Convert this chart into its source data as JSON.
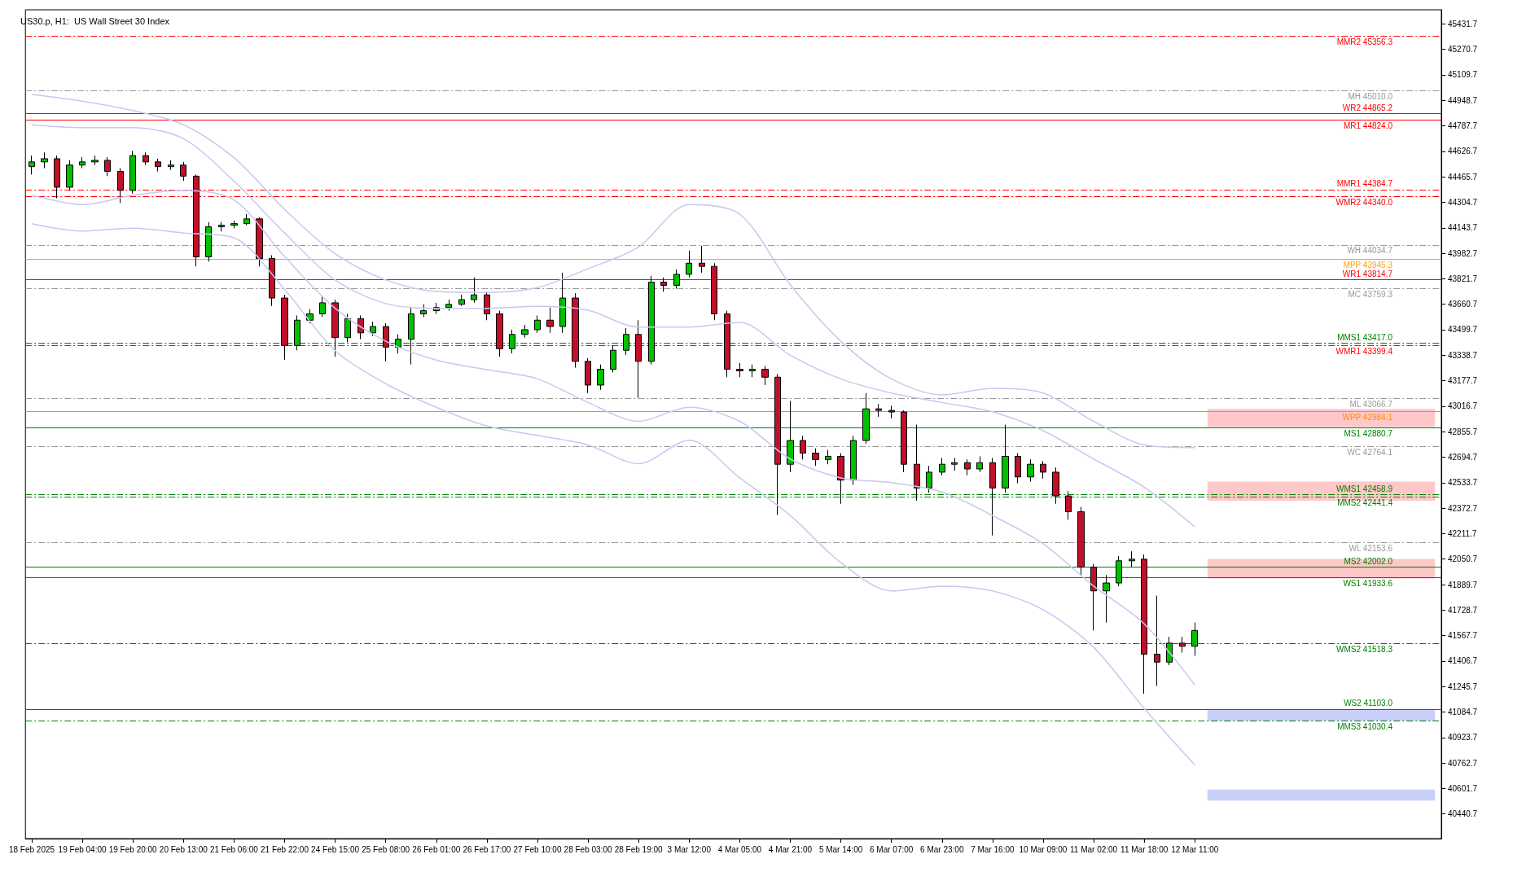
{
  "chart_data": {
    "type": "candlestick",
    "title": "US30.p, H1:  US Wall Street 30 Index",
    "categories": [
      "18 Feb 2025",
      null,
      null,
      null,
      "19 Feb 04:00",
      null,
      null,
      null,
      "19 Feb 20:00",
      null,
      null,
      null,
      "20 Feb 13:00",
      null,
      null,
      null,
      "21 Feb 06:00",
      null,
      null,
      null,
      "21 Feb 22:00",
      null,
      null,
      null,
      "24 Feb 15:00",
      null,
      null,
      null,
      "25 Feb 08:00",
      null,
      null,
      null,
      "26 Feb 01:00",
      null,
      null,
      null,
      "26 Feb 17:00",
      null,
      null,
      null,
      "27 Feb 10:00",
      null,
      null,
      null,
      "28 Feb 03:00",
      null,
      null,
      null,
      "28 Feb 19:00",
      null,
      null,
      null,
      "3 Mar 12:00",
      null,
      null,
      null,
      "4 Mar 05:00",
      null,
      null,
      null,
      "4 Mar 21:00",
      null,
      null,
      null,
      "5 Mar 14:00",
      null,
      null,
      null,
      "6 Mar 07:00",
      null,
      null,
      null,
      "6 Mar 23:00",
      null,
      null,
      null,
      "7 Mar 16:00",
      null,
      null,
      null,
      "10 Mar 09:00",
      null,
      null,
      null,
      "11 Mar 02:00",
      null,
      null,
      null,
      "11 Mar 18:00",
      null,
      null,
      null,
      "12 Mar 11:00",
      null,
      null,
      null,
      null,
      null,
      null,
      null,
      null,
      null,
      null,
      null,
      null,
      null,
      null,
      null,
      null,
      null,
      null,
      null
    ],
    "colors": [
      "#00c000",
      "#00c000",
      "#c0102a",
      "#00c000",
      "#00c000",
      "#00c000",
      "#c0102a",
      "#c0102a",
      "#00c000",
      "#c0102a",
      "#c0102a",
      "#00c000",
      "#c0102a",
      "#c0102a",
      "#00c000",
      "#00c000",
      "#00c000",
      "#00c000",
      "#c0102a",
      "#c0102a",
      "#c0102a",
      "#00c000",
      "#00c000",
      "#00c000",
      "#c0102a",
      "#00c000",
      "#c0102a",
      "#00c000",
      "#c0102a",
      "#00c000",
      "#00c000",
      "#00c000",
      "#00c000",
      "#00c000",
      "#00c000",
      "#00c000",
      "#c0102a",
      "#c0102a",
      "#00c000",
      "#00c000",
      "#00c000",
      "#c0102a",
      "#00c000",
      "#c0102a",
      "#c0102a",
      "#00c000",
      "#00c000",
      "#00c000",
      "#c0102a",
      "#00c000",
      "#c0102a",
      "#00c000",
      "#00c000",
      "#c0102a",
      "#c0102a",
      "#c0102a",
      "#c0102a",
      "#00c000",
      "#c0102a",
      "#c0102a",
      "#00c000",
      "#c0102a",
      "#c0102a",
      "#00c000",
      "#c0102a",
      "#00c000",
      "#00c000",
      "#c0102a",
      "#c0102a",
      "#c0102a",
      "#c0102a",
      "#00c000",
      "#00c000",
      "#00c000",
      "#c0102a",
      "#00c000",
      "#c0102a",
      "#00c000",
      "#c0102a",
      "#00c000",
      "#c0102a",
      "#c0102a",
      "#c0102a",
      "#c0102a",
      "#c0102a",
      "#00c000",
      "#00c000",
      "#00c000",
      "#c0102a",
      "#c0102a",
      "#00c000",
      "#c0102a",
      "#00c000",
      null,
      null,
      null,
      null,
      null,
      null,
      null,
      null,
      null,
      null,
      null,
      null,
      null,
      null,
      null,
      null,
      null,
      null,
      null
    ],
    "ohlc": [
      [
        44530,
        44600,
        44480,
        44560
      ],
      [
        44560,
        44620,
        44520,
        44580
      ],
      [
        44580,
        44600,
        44330,
        44400
      ],
      [
        44400,
        44570,
        44380,
        44540
      ],
      [
        44540,
        44590,
        44520,
        44560
      ],
      [
        44560,
        44600,
        44540,
        44570
      ],
      [
        44570,
        44590,
        44470,
        44500
      ],
      [
        44500,
        44520,
        44300,
        44380
      ],
      [
        44380,
        44630,
        44360,
        44600
      ],
      [
        44600,
        44620,
        44540,
        44560
      ],
      [
        44560,
        44580,
        44500,
        44530
      ],
      [
        44530,
        44570,
        44510,
        44540
      ],
      [
        44540,
        44560,
        44440,
        44470
      ],
      [
        44470,
        44480,
        43900,
        43960
      ],
      [
        43960,
        44180,
        43930,
        44150
      ],
      [
        44150,
        44180,
        44120,
        44160
      ],
      [
        44160,
        44190,
        44140,
        44170
      ],
      [
        44170,
        44230,
        44160,
        44200
      ],
      [
        44200,
        44210,
        43900,
        43950
      ],
      [
        43950,
        43970,
        43650,
        43700
      ],
      [
        43700,
        43720,
        43310,
        43400
      ],
      [
        43400,
        43590,
        43370,
        43560
      ],
      [
        43560,
        43630,
        43540,
        43600
      ],
      [
        43600,
        43710,
        43580,
        43670
      ],
      [
        43670,
        43690,
        43330,
        43450
      ],
      [
        43450,
        43600,
        43420,
        43570
      ],
      [
        43570,
        43590,
        43440,
        43480
      ],
      [
        43480,
        43550,
        43460,
        43520
      ],
      [
        43520,
        43540,
        43300,
        43390
      ],
      [
        43390,
        43470,
        43350,
        43440
      ],
      [
        43440,
        43640,
        43280,
        43600
      ],
      [
        43600,
        43660,
        43580,
        43620
      ],
      [
        43620,
        43670,
        43600,
        43640
      ],
      [
        43640,
        43690,
        43620,
        43660
      ],
      [
        43660,
        43720,
        43650,
        43690
      ],
      [
        43690,
        43830,
        43670,
        43720
      ],
      [
        43720,
        43740,
        43560,
        43600
      ],
      [
        43600,
        43620,
        43330,
        43380
      ],
      [
        43380,
        43500,
        43350,
        43470
      ],
      [
        43470,
        43530,
        43450,
        43500
      ],
      [
        43500,
        43590,
        43480,
        43560
      ],
      [
        43560,
        43640,
        43480,
        43520
      ],
      [
        43520,
        43860,
        43480,
        43700
      ],
      [
        43700,
        43730,
        43260,
        43300
      ],
      [
        43300,
        43320,
        43100,
        43150
      ],
      [
        43150,
        43280,
        43120,
        43250
      ],
      [
        43250,
        43400,
        43230,
        43370
      ],
      [
        43370,
        43510,
        43340,
        43470
      ],
      [
        43470,
        43560,
        43070,
        43300
      ],
      [
        43300,
        43840,
        43280,
        43800
      ],
      [
        43800,
        43830,
        43740,
        43780
      ],
      [
        43780,
        43880,
        43760,
        43850
      ],
      [
        43850,
        44000,
        43830,
        43920
      ],
      [
        43920,
        44030,
        43860,
        43900
      ],
      [
        43900,
        43920,
        43560,
        43600
      ],
      [
        43600,
        43620,
        43200,
        43250
      ],
      [
        43250,
        43290,
        43200,
        43240
      ],
      [
        43240,
        43280,
        43200,
        43250
      ],
      [
        43250,
        43270,
        43150,
        43200
      ],
      [
        43200,
        43220,
        42330,
        42650
      ],
      [
        42650,
        43050,
        42600,
        42800
      ],
      [
        42800,
        42830,
        42680,
        42720
      ],
      [
        42720,
        42750,
        42640,
        42680
      ],
      [
        42680,
        42740,
        42650,
        42700
      ],
      [
        42700,
        42720,
        42400,
        42550
      ],
      [
        42550,
        42830,
        42520,
        42800
      ],
      [
        42800,
        43100,
        42780,
        43000
      ],
      [
        43000,
        43030,
        42950,
        42990
      ],
      [
        42990,
        43020,
        42940,
        42980
      ],
      [
        42980,
        42990,
        42600,
        42650
      ],
      [
        42650,
        42900,
        42420,
        42500
      ],
      [
        42500,
        42640,
        42470,
        42600
      ],
      [
        42600,
        42690,
        42580,
        42650
      ],
      [
        42650,
        42690,
        42610,
        42660
      ],
      [
        42660,
        42680,
        42580,
        42620
      ],
      [
        42620,
        42700,
        42600,
        42660
      ],
      [
        42660,
        42690,
        42200,
        42500
      ],
      [
        42500,
        42900,
        42470,
        42700
      ],
      [
        42700,
        42720,
        42530,
        42570
      ],
      [
        42570,
        42680,
        42540,
        42650
      ],
      [
        42650,
        42670,
        42560,
        42600
      ],
      [
        42600,
        42630,
        42400,
        42450
      ],
      [
        42450,
        42480,
        42300,
        42350
      ],
      [
        42350,
        42380,
        41950,
        42000
      ],
      [
        42000,
        42020,
        41600,
        41850
      ],
      [
        41850,
        41950,
        41650,
        41900
      ],
      [
        41900,
        42070,
        41880,
        42040
      ],
      [
        42040,
        42100,
        42000,
        42050
      ],
      [
        42050,
        42080,
        41200,
        41450
      ],
      [
        41450,
        41820,
        41250,
        41400
      ],
      [
        41400,
        41560,
        41380,
        41520
      ],
      [
        41520,
        41560,
        41460,
        41500
      ],
      [
        41500,
        41650,
        41440,
        41600
      ],
      null,
      null,
      null,
      null,
      null,
      null,
      null,
      null,
      null,
      null,
      null,
      null,
      null,
      null,
      null,
      null,
      null,
      null,
      null
    ],
    "series": [
      {
        "type": "line",
        "color": "#c8c8f0",
        "x": [
          "18 Feb 2025",
          "19 Feb 04:00",
          "19 Feb 20:00",
          "20 Feb 13:00",
          "21 Feb 06:00",
          "21 Feb 22:00",
          "24 Feb 15:00",
          "25 Feb 08:00",
          "26 Feb 01:00",
          "26 Feb 17:00",
          "27 Feb 10:00",
          "28 Feb 03:00",
          "28 Feb 19:00",
          "3 Mar 12:00",
          "4 Mar 05:00",
          "4 Mar 21:00",
          "5 Mar 14:00",
          "6 Mar 07:00",
          "6 Mar 23:00",
          "7 Mar 16:00",
          "10 Mar 09:00",
          "11 Mar 02:00",
          "11 Mar 18:00",
          "12 Mar 11:00"
        ],
        "values": [
          44986,
          44944,
          44884,
          44795,
          44587,
          44260,
          43980,
          43814,
          43742,
          43736,
          43766,
          43885,
          44022,
          44290,
          44230,
          43784,
          43427,
          43189,
          43088,
          43129,
          43100,
          42921,
          42772,
          42755
        ]
      },
      {
        "type": "line",
        "color": "#c8c8f0",
        "x": [
          "18 Feb 2025",
          "19 Feb 04:00",
          "19 Feb 20:00",
          "20 Feb 13:00",
          "21 Feb 06:00",
          "21 Feb 22:00",
          "24 Feb 15:00",
          "25 Feb 08:00",
          "26 Feb 01:00",
          "26 Feb 17:00",
          "27 Feb 10:00",
          "28 Feb 03:00",
          "28 Feb 19:00",
          "3 Mar 12:00",
          "4 Mar 05:00",
          "4 Mar 21:00",
          "5 Mar 14:00",
          "6 Mar 07:00",
          "6 Mar 23:00",
          "7 Mar 16:00",
          "10 Mar 09:00",
          "11 Mar 02:00",
          "11 Mar 18:00",
          "12 Mar 11:00"
        ],
        "values": [
          44795,
          44777,
          44777,
          44706,
          44438,
          44111,
          43814,
          43665,
          43635,
          43635,
          43647,
          43623,
          43516,
          43516,
          43546,
          43338,
          43189,
          43100,
          43040,
          42981,
          42862,
          42683,
          42505,
          42255
        ]
      },
      {
        "type": "line",
        "color": "#c8c8f0",
        "x": [
          "18 Feb 2025",
          "19 Feb 04:00",
          "19 Feb 20:00",
          "20 Feb 13:00",
          "21 Feb 06:00",
          "21 Feb 22:00",
          "24 Feb 15:00",
          "25 Feb 08:00",
          "26 Feb 01:00",
          "26 Feb 17:00",
          "27 Feb 10:00",
          "28 Feb 03:00",
          "28 Feb 19:00",
          "3 Mar 12:00",
          "4 Mar 05:00",
          "4 Mar 21:00",
          "5 Mar 14:00",
          "6 Mar 07:00",
          "6 Mar 23:00",
          "7 Mar 16:00",
          "10 Mar 09:00",
          "11 Mar 02:00",
          "11 Mar 18:00",
          "12 Mar 11:00"
        ],
        "values": [
          44349,
          44290,
          44349,
          44379,
          44319,
          43962,
          43635,
          43427,
          43308,
          43248,
          43189,
          43040,
          42921,
          43010,
          42921,
          42683,
          42564,
          42534,
          42475,
          42326,
          42148,
          41880,
          41642,
          41255
        ]
      },
      {
        "type": "line",
        "color": "#c8c8f0",
        "x": [
          "18 Feb 2025",
          "19 Feb 04:00",
          "19 Feb 20:00",
          "20 Feb 13:00",
          "21 Feb 06:00",
          "21 Feb 22:00",
          "24 Feb 15:00",
          "25 Feb 08:00",
          "26 Feb 01:00",
          "26 Feb 17:00",
          "27 Feb 10:00",
          "28 Feb 03:00",
          "28 Feb 19:00",
          "3 Mar 12:00",
          "4 Mar 05:00",
          "4 Mar 21:00",
          "5 Mar 14:00",
          "6 Mar 07:00",
          "6 Mar 23:00",
          "7 Mar 16:00",
          "10 Mar 09:00",
          "11 Mar 02:00",
          "11 Mar 18:00",
          "12 Mar 11:00"
        ],
        "values": [
          44170,
          44123,
          44141,
          44111,
          44081,
          43754,
          43367,
          43159,
          43010,
          42891,
          42832,
          42772,
          42653,
          42802,
          42564,
          42326,
          42029,
          41850,
          41880,
          41850,
          41731,
          41493,
          41107,
          40750
        ]
      }
    ],
    "ylim": [
      40285,
      45521
    ],
    "yticks": [
      40440.7,
      40601.7,
      40762.7,
      40923.7,
      41084.7,
      41245.7,
      41406.7,
      41567.7,
      41728.7,
      41889.7,
      42050.7,
      42211.7,
      42372.7,
      42533.7,
      42694.7,
      42855.7,
      43016.7,
      43177.7,
      43338.7,
      43499.7,
      43660.7,
      43821.7,
      43982.7,
      44143.7,
      44304.7,
      44465.7,
      44626.7,
      44787.7,
      44948.7,
      45109.7,
      45270.7,
      45431.7
    ],
    "ref_lines": [
      {
        "axis": "y",
        "value": 45356.3,
        "label": "MMR2 45356.3",
        "color": "#ff0000",
        "line_style": "dashed"
      },
      {
        "axis": "y",
        "value": 45010.0,
        "label": "MH 45010.0",
        "color": "#999999",
        "line_style": "dashed"
      },
      {
        "axis": "y",
        "value": 44865.2,
        "label": "WR2 44865.2",
        "color": "#ff0000",
        "line_style": "solid"
      },
      {
        "axis": "y",
        "value": 44824.0,
        "label": "MR1 44824.0",
        "color": "#ff0000",
        "line_style": "solid"
      },
      {
        "axis": "y",
        "value": 44384.7,
        "label": "MMR1 44384.7",
        "color": "#ff0000",
        "line_style": "dashed"
      },
      {
        "axis": "y",
        "value": 44340.0,
        "label": "WMR2 44340.0",
        "color": "#ff0000",
        "line_style": "dashed"
      },
      {
        "axis": "y",
        "value": 44034.7,
        "label": "WH 44034.7",
        "color": "#999999",
        "line_style": "dashed"
      },
      {
        "axis": "y",
        "value": 43945.3,
        "label": "MPP 43945.3",
        "color": "#ffa500",
        "line_style": "solid"
      },
      {
        "axis": "y",
        "value": 43814.7,
        "label": "WR1 43814.7",
        "color": "#ff0000",
        "line_style": "solid"
      },
      {
        "axis": "y",
        "value": 43759.3,
        "label": "MC 43759.3",
        "color": "#999999",
        "line_style": "dashed"
      },
      {
        "axis": "y",
        "value": 43417.0,
        "label": "MMS1 43417.0",
        "color": "#008000",
        "line_style": "dashed"
      },
      {
        "axis": "y",
        "value": 43399.4,
        "label": "WMR1 43399.4",
        "color": "#ff0000",
        "line_style": "dashed"
      },
      {
        "axis": "y",
        "value": 43066.7,
        "label": "ML 43066.7",
        "color": "#999999",
        "line_style": "dashed"
      },
      {
        "axis": "y",
        "value": 42984.1,
        "label": "WPP 42984.1",
        "color": "#ff8c00",
        "line_style": "solid"
      },
      {
        "axis": "y",
        "value": 42880.7,
        "label": "MS1 42880.7",
        "color": "#008000",
        "line_style": "solid"
      },
      {
        "axis": "y",
        "value": 42764.1,
        "label": "WC 42764.1",
        "color": "#999999",
        "line_style": "dashed"
      },
      {
        "axis": "y",
        "value": 42458.9,
        "label": "WMS1 42458.9",
        "color": "#008000",
        "line_style": "dashed"
      },
      {
        "axis": "y",
        "value": 42441.4,
        "label": "MMS2 42441.4",
        "color": "#008000",
        "line_style": "dashed"
      },
      {
        "axis": "y",
        "value": 42153.6,
        "label": "WL 42153.6",
        "color": "#999999",
        "line_style": "dashed"
      },
      {
        "axis": "y",
        "value": 42002.0,
        "label": "MS2 42002.0",
        "color": "#008000",
        "line_style": "solid"
      },
      {
        "axis": "y",
        "value": 41933.6,
        "label": "WS1 41933.6",
        "color": "#008000",
        "line_style": "solid"
      },
      {
        "axis": "y",
        "value": 41518.3,
        "label": "WMS2 41518.3",
        "color": "#008000",
        "line_style": "dashed"
      },
      {
        "axis": "y",
        "value": 41103.0,
        "label": "WS2 41103.0",
        "color": "#008000",
        "line_style": "solid"
      },
      {
        "axis": "y",
        "value": 41030.4,
        "label": "MMS3 41030.4",
        "color": "#008000",
        "line_style": "dashed"
      }
    ],
    "bands": [
      {
        "axis": "y",
        "from": 42885,
        "to": 43000,
        "color": "#ffc8c8"
      },
      {
        "axis": "y",
        "from": 42420,
        "to": 42540,
        "color": "#ffc8c8"
      },
      {
        "axis": "y",
        "from": 41928,
        "to": 42052,
        "color": "#ffc8c8"
      },
      {
        "axis": "y",
        "from": 41030,
        "to": 41100,
        "color": "#c8d0f8"
      },
      {
        "axis": "y",
        "from": 40525,
        "to": 40595,
        "color": "#c8d0f8"
      }
    ]
  }
}
